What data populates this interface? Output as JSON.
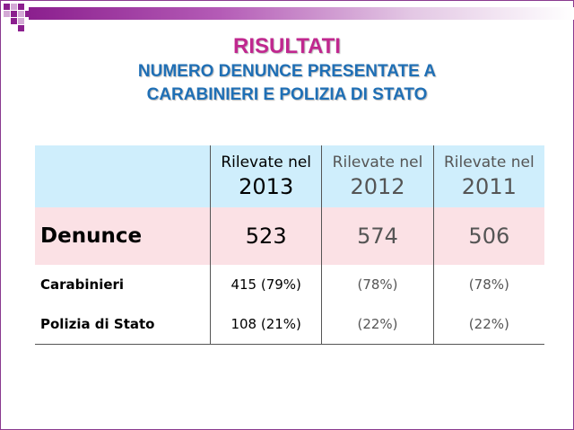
{
  "title": "RISULTATI",
  "subtitle_line1": "NUMERO DENUNCE PRESENTATE A",
  "subtitle_line2": "CARABINIERI  E POLIZIA DI STATO",
  "table": {
    "headers": [
      {
        "label": "Rilevate nel",
        "year": "2013"
      },
      {
        "label": "Rilevate nel",
        "year": "2012"
      },
      {
        "label": "Rilevate nel",
        "year": "2011"
      }
    ],
    "rows": [
      {
        "label": "Denunce",
        "values": [
          "523",
          "574",
          "506"
        ]
      },
      {
        "label": "Carabinieri",
        "values": [
          "415 (79%)",
          "(78%)",
          "(78%)"
        ]
      },
      {
        "label": "Polizia di Stato",
        "values": [
          "108 (21%)",
          "(22%)",
          "(22%)"
        ]
      }
    ]
  },
  "colors": {
    "title": "#c0288f",
    "subtitle": "#1f6fb5",
    "header_bg": "#cfeefc",
    "denunce_bg": "#fbe1e5",
    "accent": "#8b1f8e"
  }
}
